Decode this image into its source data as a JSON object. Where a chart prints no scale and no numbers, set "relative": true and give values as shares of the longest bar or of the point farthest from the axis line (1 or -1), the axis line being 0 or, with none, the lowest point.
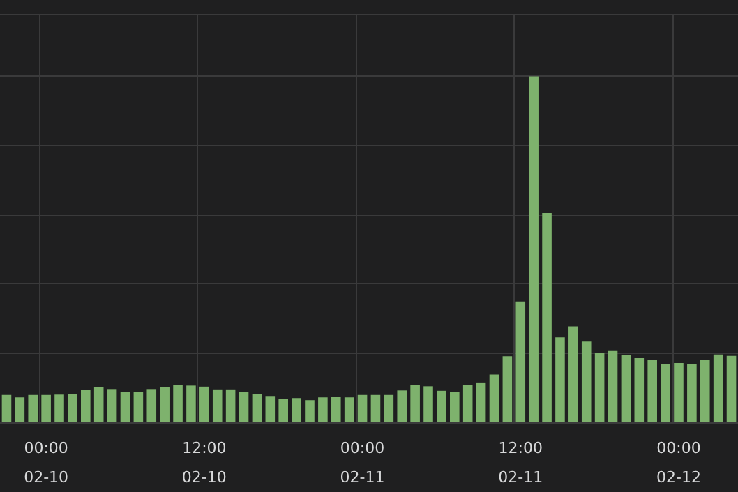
{
  "chart_data": {
    "type": "bar",
    "relative": true,
    "grid": true,
    "categories": [
      null,
      null,
      null,
      "00:00\n02-10",
      null,
      null,
      null,
      null,
      null,
      null,
      null,
      null,
      null,
      null,
      null,
      "12:00\n02-10",
      null,
      null,
      null,
      null,
      null,
      null,
      null,
      null,
      null,
      null,
      null,
      "00:00\n02-11",
      null,
      null,
      null,
      null,
      null,
      null,
      null,
      null,
      null,
      null,
      null,
      "12:00\n02-11",
      null,
      null,
      null,
      null,
      null,
      null,
      null,
      null,
      null,
      null,
      null,
      "00:00\n02-12",
      null,
      null,
      null,
      null
    ],
    "series": [
      {
        "color": "#7eb26d",
        "values": [
          0.079,
          0.072,
          0.079,
          0.079,
          0.08,
          0.082,
          0.094,
          0.102,
          0.096,
          0.087,
          0.087,
          0.096,
          0.102,
          0.108,
          0.106,
          0.103,
          0.095,
          0.095,
          0.088,
          0.082,
          0.076,
          0.067,
          0.07,
          0.064,
          0.072,
          0.074,
          0.072,
          0.079,
          0.079,
          0.079,
          0.092,
          0.108,
          0.104,
          0.091,
          0.087,
          0.107,
          0.115,
          0.138,
          0.191,
          0.349,
          1,
          0.606,
          0.245,
          0.277,
          0.233,
          0.2,
          0.208,
          0.195,
          0.187,
          0.179,
          0.169,
          0.171,
          0.169,
          0.181,
          0.196,
          0.192
        ]
      }
    ]
  }
}
